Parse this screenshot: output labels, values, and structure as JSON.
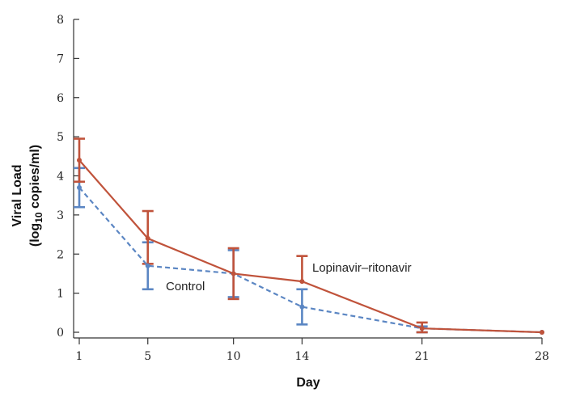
{
  "chart_data": {
    "type": "line",
    "xlabel": "Day",
    "ylabel_main": "Viral Load",
    "ylabel_unit_pre": "(log",
    "ylabel_unit_sub": "10",
    "ylabel_unit_post": " copies/ml)",
    "xlim": [
      1,
      28
    ],
    "ylim": [
      0,
      8
    ],
    "xticks": [
      1,
      5,
      10,
      14,
      21,
      28
    ],
    "yticks": [
      0,
      1,
      2,
      3,
      4,
      5,
      6,
      7,
      8
    ],
    "grid": false,
    "series": [
      {
        "name": "Lopinavir–ritonavir",
        "color": "#c0533b",
        "line_style": "solid",
        "x": [
          1,
          5,
          10,
          14,
          21,
          28
        ],
        "y": [
          4.4,
          2.4,
          1.5,
          1.3,
          0.1,
          0.0
        ],
        "err_low": [
          3.85,
          1.75,
          0.85,
          null,
          0.0,
          null
        ],
        "err_high": [
          4.95,
          3.1,
          2.15,
          1.95,
          0.25,
          null
        ]
      },
      {
        "name": "Control",
        "color": "#5b86c3",
        "line_style": "dashed",
        "x": [
          1,
          5,
          10,
          14,
          21,
          28
        ],
        "y": [
          3.7,
          1.7,
          1.5,
          0.65,
          0.1,
          0.0
        ],
        "err_low": [
          3.2,
          1.1,
          0.9,
          0.2,
          0.0,
          null
        ],
        "err_high": [
          4.2,
          2.3,
          2.1,
          1.1,
          0.15,
          null
        ]
      }
    ]
  }
}
